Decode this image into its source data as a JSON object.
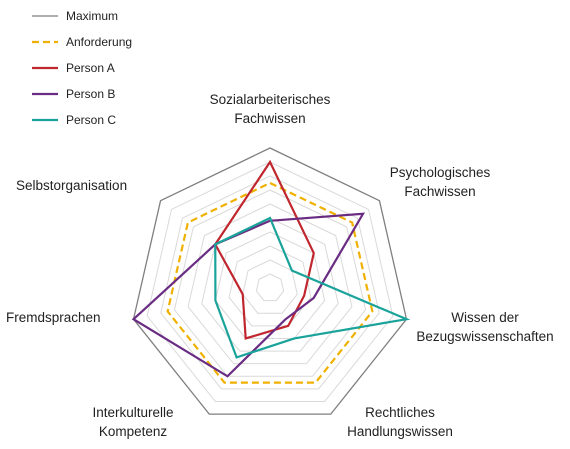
{
  "chart_data": {
    "type": "radar",
    "axes": [
      [
        "Sozialarbeiterisches",
        "Fachwissen"
      ],
      [
        "Psychologisches",
        "Fachwissen"
      ],
      [
        "Wissen der",
        "Bezugswissenschaften"
      ],
      [
        "Rechtliches",
        "Handlungswissen"
      ],
      [
        "Interkulturelle",
        "Kompetenz"
      ],
      [
        "Fremdsprachen"
      ],
      [
        "Selbstorganisation"
      ]
    ],
    "range": [
      0,
      10
    ],
    "rings": 10,
    "grid": true,
    "legend_position": "top-left",
    "series": [
      {
        "name": "Maximum",
        "color": "#7f7f7f",
        "dash": "",
        "values": [
          10,
          10,
          10,
          10,
          10,
          10,
          10
        ]
      },
      {
        "name": "Anforderung",
        "color": "#f0b000",
        "dash": "7,4",
        "values": [
          7.5,
          7.5,
          7.5,
          7.5,
          7.5,
          7.5,
          7.5
        ]
      },
      {
        "name": "Person A",
        "color": "#c0262d",
        "dash": "",
        "values": [
          9,
          4,
          2.5,
          3,
          4,
          2,
          5
        ]
      },
      {
        "name": "Person B",
        "color": "#6a2c82",
        "dash": "",
        "values": [
          4.8,
          8.5,
          3.2,
          2.5,
          7,
          10,
          5
        ]
      },
      {
        "name": "Person C",
        "color": "#1aa39a",
        "dash": "",
        "values": [
          5,
          2,
          10,
          4,
          5.5,
          4,
          5
        ]
      }
    ]
  }
}
